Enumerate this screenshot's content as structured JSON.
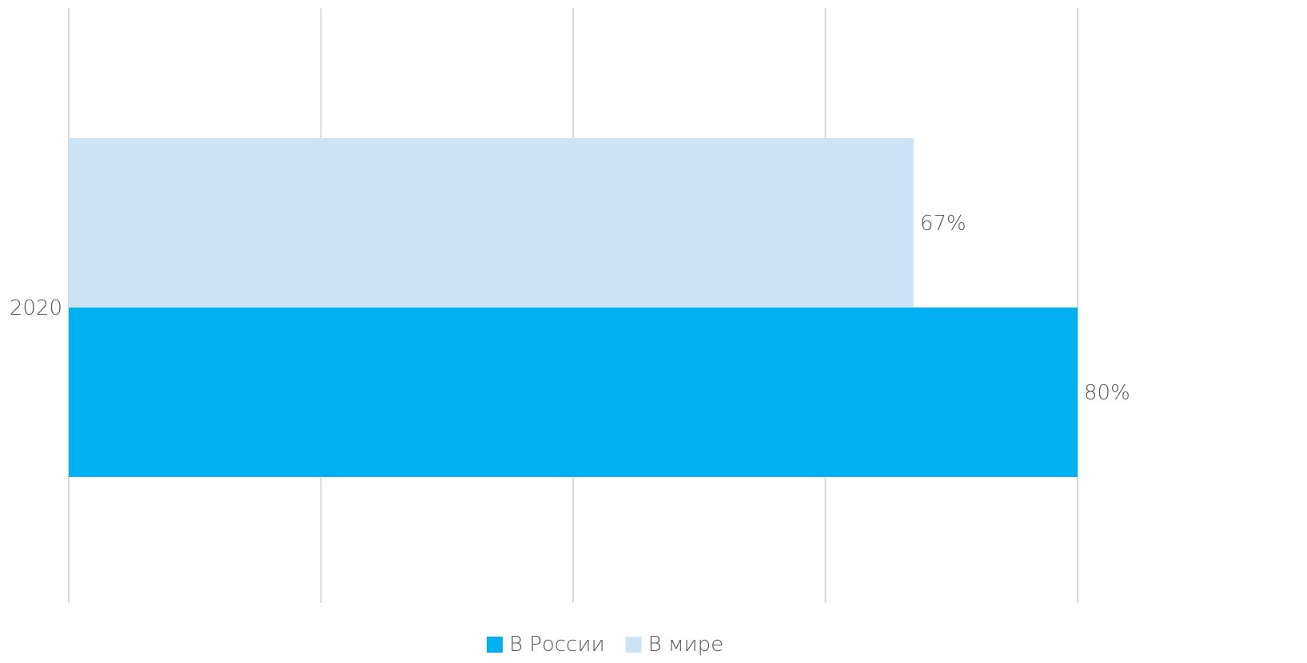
{
  "chart_data": {
    "type": "bar",
    "orientation": "horizontal",
    "categories": [
      "2020"
    ],
    "series": [
      {
        "name": "В России",
        "values": [
          80
        ],
        "color": "#00B0F0",
        "label": "80%"
      },
      {
        "name": "В мире",
        "values": [
          67
        ],
        "color": "#CCE4F6",
        "label": "67%"
      }
    ],
    "xlim": [
      0,
      80
    ],
    "grid": true,
    "legend": "bottom",
    "title": "",
    "xlabel": "",
    "ylabel": ""
  }
}
